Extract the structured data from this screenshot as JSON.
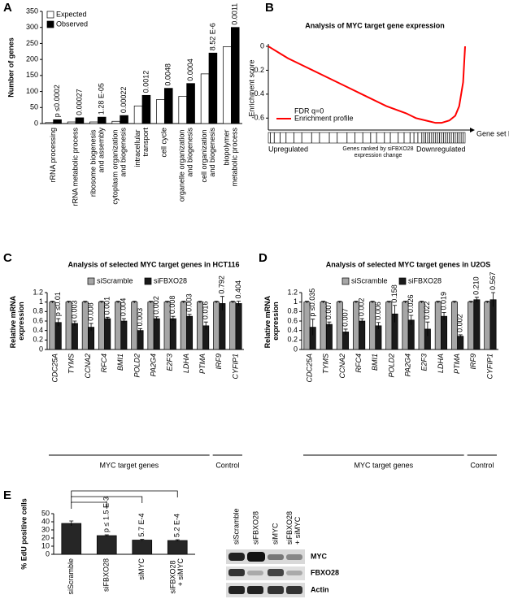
{
  "panels": [
    "A",
    "B",
    "C",
    "D",
    "E"
  ],
  "chart_data": [
    {
      "type": "bar",
      "ylabel": "Number of genes",
      "categories": [
        "rRNA processing",
        "rRNA metabolic process",
        "ribosome biogenesis and assembly",
        "cytoplasm organization and biogenesis",
        "intracellular transport",
        "cell cycle",
        "organelle organization and biogenesis",
        "cell organization and biogenesis",
        "biopolymer metabolic process"
      ],
      "series": [
        {
          "name": "Expected",
          "color": "#ffffff",
          "values": [
            3,
            5,
            5,
            7,
            55,
            75,
            85,
            155,
            240
          ]
        },
        {
          "name": "Observed",
          "color": "#000000",
          "values": [
            12,
            18,
            20,
            25,
            88,
            110,
            125,
            220,
            300
          ]
        }
      ],
      "annotations": [
        "p ≤0.0002",
        "0.00027",
        "1.28 E-05",
        "0.00022",
        "0.0012",
        "0.0048",
        "0.0004",
        "8.52 E-6",
        "0.0011"
      ],
      "ylim": [
        0,
        350
      ],
      "yticks": [
        0,
        50,
        100,
        150,
        200,
        250,
        300,
        350
      ]
    },
    {
      "type": "line",
      "title": "Analysis of MYC target gene expression",
      "ylabel": "Enrichment score",
      "xlabel": "Gene set hits",
      "x": [
        0,
        2,
        5,
        10,
        20,
        30,
        40,
        50,
        60,
        70,
        75,
        80,
        85,
        88,
        92,
        95,
        97,
        99,
        100
      ],
      "series": [
        {
          "name": "Enrichment profile",
          "color": "#ff0000",
          "values": [
            0,
            -0.02,
            -0.05,
            -0.1,
            -0.18,
            -0.26,
            -0.34,
            -0.42,
            -0.5,
            -0.56,
            -0.6,
            -0.62,
            -0.64,
            -0.64,
            -0.62,
            -0.58,
            -0.5,
            -0.3,
            0
          ]
        }
      ],
      "annotation": "FDR q=0",
      "hits": [
        1,
        3,
        6,
        9,
        13,
        17,
        22,
        26,
        31,
        35,
        40,
        44,
        48,
        52,
        55,
        59,
        62,
        66,
        69,
        72,
        74,
        76,
        78,
        79,
        80,
        81,
        82,
        83,
        84,
        85,
        86,
        87,
        88,
        89,
        90,
        91,
        92,
        93,
        94,
        95,
        96,
        97,
        98,
        99
      ],
      "x_regions": [
        "Upregulated",
        "Genes ranked by siFBXO28 expression change",
        "Downregulated"
      ],
      "xlim": [
        0,
        100
      ],
      "ylim": [
        -0.7,
        0
      ],
      "yticks": [
        0,
        -0.2,
        -0.4,
        -0.6
      ]
    },
    {
      "type": "bar",
      "title": "Analysis of selected MYC target genes in HCT116",
      "ylabel": "Relative mRNA expression",
      "categories": [
        "CDC25A",
        "TYMS",
        "CCNA2",
        "RFC4",
        "BMI1",
        "POLD2",
        "PA2G4",
        "E2F3",
        "LDHA",
        "PTMA",
        "IRF9",
        "CYFIP1"
      ],
      "series": [
        {
          "name": "siScramble",
          "color": "#a6a6a6",
          "values": [
            1,
            1,
            1,
            1,
            1,
            1,
            1,
            1,
            1,
            1,
            1,
            1
          ],
          "errors": [
            0.02,
            0.02,
            0.02,
            0.02,
            0.02,
            0.02,
            0.02,
            0.02,
            0.02,
            0.02,
            0.02,
            0.02
          ]
        },
        {
          "name": "siFBXO28",
          "color": "#1a1a1a",
          "values": [
            0.57,
            0.55,
            0.47,
            0.65,
            0.6,
            0.4,
            0.65,
            0.65,
            0.7,
            0.5,
            0.97,
            0.97
          ],
          "errors": [
            0.08,
            0.05,
            0.08,
            0.03,
            0.05,
            0.04,
            0.04,
            0.05,
            0.04,
            0.08,
            0.15,
            0.05
          ]
        }
      ],
      "annotations": [
        "p ≤0.01",
        "0.003",
        "0.008",
        "0.001",
        "0.004",
        "0.003",
        "0.002",
        "0.008",
        "0.003",
        "0.016",
        "0.792",
        "0.404"
      ],
      "group_labels": [
        "MYC target genes",
        "Control"
      ],
      "ylim": [
        0,
        1.2
      ],
      "yticks": [
        0,
        0.2,
        0.4,
        0.6,
        0.8,
        1,
        1.2
      ]
    },
    {
      "type": "bar",
      "title": "Analysis of selected MYC target genes in U2OS",
      "ylabel": "Relative mRNA expression",
      "categories": [
        "CDC25A",
        "TYMS",
        "CCNA2",
        "RFC4",
        "BMI1",
        "POLD2",
        "PA2G4",
        "E2F3",
        "LDHA",
        "PTMA",
        "IRF9",
        "CYFIP1"
      ],
      "series": [
        {
          "name": "siScramble",
          "color": "#a6a6a6",
          "values": [
            1,
            1,
            1,
            1,
            1,
            1,
            1,
            1,
            1,
            1,
            1,
            1
          ],
          "errors": [
            0.02,
            0.02,
            0.02,
            0.02,
            0.02,
            0.02,
            0.02,
            0.02,
            0.02,
            0.02,
            0.02,
            0.02
          ]
        },
        {
          "name": "siFBXO28",
          "color": "#1a1a1a",
          "values": [
            0.47,
            0.53,
            0.37,
            0.6,
            0.5,
            0.75,
            0.62,
            0.43,
            0.7,
            0.28,
            1.05,
            1.05
          ],
          "errors": [
            0.17,
            0.05,
            0.06,
            0.05,
            0.07,
            0.18,
            0.1,
            0.15,
            0.08,
            0.03,
            0.05,
            0.15
          ]
        }
      ],
      "annotations": [
        "p ≤0.035",
        "0.007",
        "0.007",
        "0.002",
        "0.006",
        "0.158",
        "0.026",
        "0.022",
        "0.019",
        "0.002",
        "0.210",
        "0.567"
      ],
      "group_labels": [
        "MYC target genes",
        "Control"
      ],
      "ylim": [
        0,
        1.2
      ],
      "yticks": [
        0,
        0.2,
        0.4,
        0.6,
        0.8,
        1,
        1.2
      ]
    },
    {
      "type": "bar",
      "ylabel": "% EdU positive cells",
      "categories": [
        "siScramble",
        "siFBXO28",
        "siMYC",
        "siFBXO28 + siMYC"
      ],
      "values": [
        38,
        23,
        17.5,
        17
      ],
      "errors": [
        3,
        1,
        1,
        1
      ],
      "color": "#262626",
      "annotations": [
        null,
        "p ≤ 1.5 E-3",
        "5.7 E-4",
        "5.2 E-4"
      ],
      "ylim": [
        0,
        50
      ],
      "yticks": [
        0,
        10,
        20,
        30,
        40,
        50
      ]
    }
  ],
  "blot": {
    "lanes": [
      "siScramble",
      "siFBXO28",
      "siMYC",
      "siFBXO28 + siMYC"
    ],
    "rows": [
      "MYC",
      "FBXO28",
      "Actin"
    ]
  }
}
